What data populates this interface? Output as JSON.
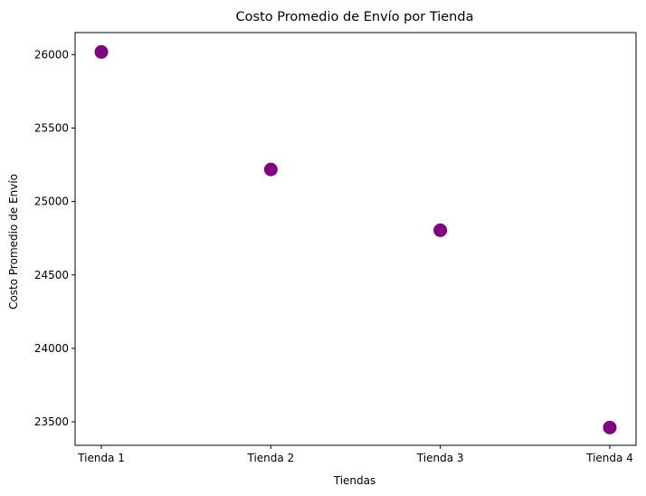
{
  "chart_data": {
    "type": "scatter",
    "title": "Costo Promedio de Envío por Tienda",
    "xlabel": "Tiendas",
    "ylabel": "Costo Promedio de Envío",
    "categories": [
      "Tienda 1",
      "Tienda 2",
      "Tienda 3",
      "Tienda 4"
    ],
    "series": [
      {
        "values": [
          26018,
          25218,
          24804,
          23461
        ],
        "color": "#800080"
      }
    ],
    "ylim": [
      23340,
      26150
    ],
    "yticks": [
      23500,
      24000,
      24500,
      25000,
      25500,
      26000
    ],
    "grid": false,
    "legend": "none"
  }
}
